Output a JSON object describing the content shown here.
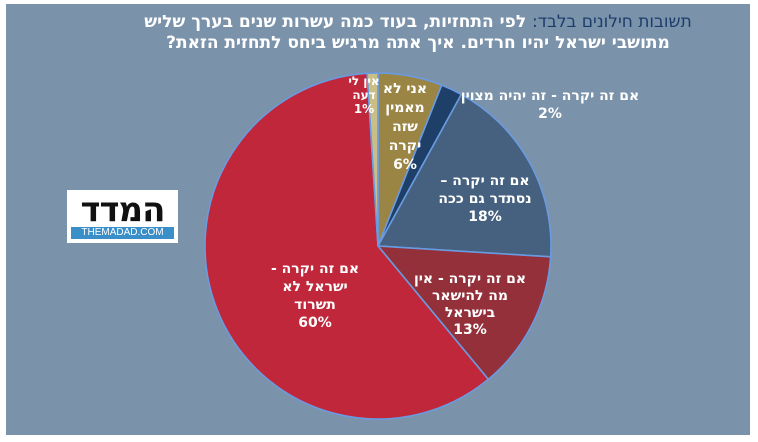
{
  "title": {
    "highlight": "תשובות חילונים בלבד:",
    "line1_rest": " לפי התחזיות, בעוד כמה עשרות שנים בערך שליש",
    "line2": "מתושבי ישראל יהיו חרדים. איך אתה מרגיש ביחס לתחזית הזאת?"
  },
  "logo": {
    "name": "המדד",
    "url": "THEMADAD.COM"
  },
  "colors": {
    "background": "#7b92ab",
    "slice_border": "#6a9be0",
    "title_highlight": "#1c3d6b"
  },
  "chart_data": {
    "type": "pie",
    "title": "תשובות חילונים בלבד: לפי התחזיות, בעוד כמה עשרות שנים בערך שליש מתושבי ישראל יהיו חרדים. איך אתה מרגיש ביחס לתחזית הזאת?",
    "start_angle": "12 o'clock",
    "direction": "clockwise",
    "slices": [
      {
        "label": "אני לא מאמין שזה יקרה",
        "value": 6,
        "display": "6%",
        "color": "#9a8545"
      },
      {
        "label": "אם זה יקרה - זה יהיה מצוין",
        "value": 2,
        "display": "2%",
        "color": "#1e3f68"
      },
      {
        "label": "אם זה יקרה – נסתדר גם ככה",
        "value": 18,
        "display": "18%",
        "color": "#45617f"
      },
      {
        "label": "אם זה יקרה - אין מה להישאר בישראל",
        "value": 13,
        "display": "13%",
        "color": "#93303a"
      },
      {
        "label": "אם זה יקרה - ישראל לא תשרוד",
        "value": 60,
        "display": "60%",
        "color": "#c0273a"
      },
      {
        "label": "אין לי דעה",
        "value": 1,
        "display": "1%",
        "color": "#c9bf86"
      }
    ],
    "labels": {
      "gold": {
        "lines": [
          "אני לא",
          "מאמין",
          "שזה",
          "יקרה",
          "6%"
        ]
      },
      "navy": {
        "lines": [
          "אם זה יקרה - זה יהיה מצוין",
          "2%"
        ]
      },
      "steel": {
        "lines": [
          "אם זה יקרה –",
          "נסתדר גם ככה",
          "18%"
        ]
      },
      "darkred": {
        "lines": [
          "אם זה יקרה - אין",
          "מה להישאר",
          "בישראל",
          "13%"
        ]
      },
      "red": {
        "lines": [
          "אם זה יקרה -",
          "ישראל לא",
          "תשרוד",
          "60%"
        ]
      },
      "pale": {
        "lines": [
          "אין לי",
          "דעה",
          "1%"
        ]
      }
    }
  }
}
